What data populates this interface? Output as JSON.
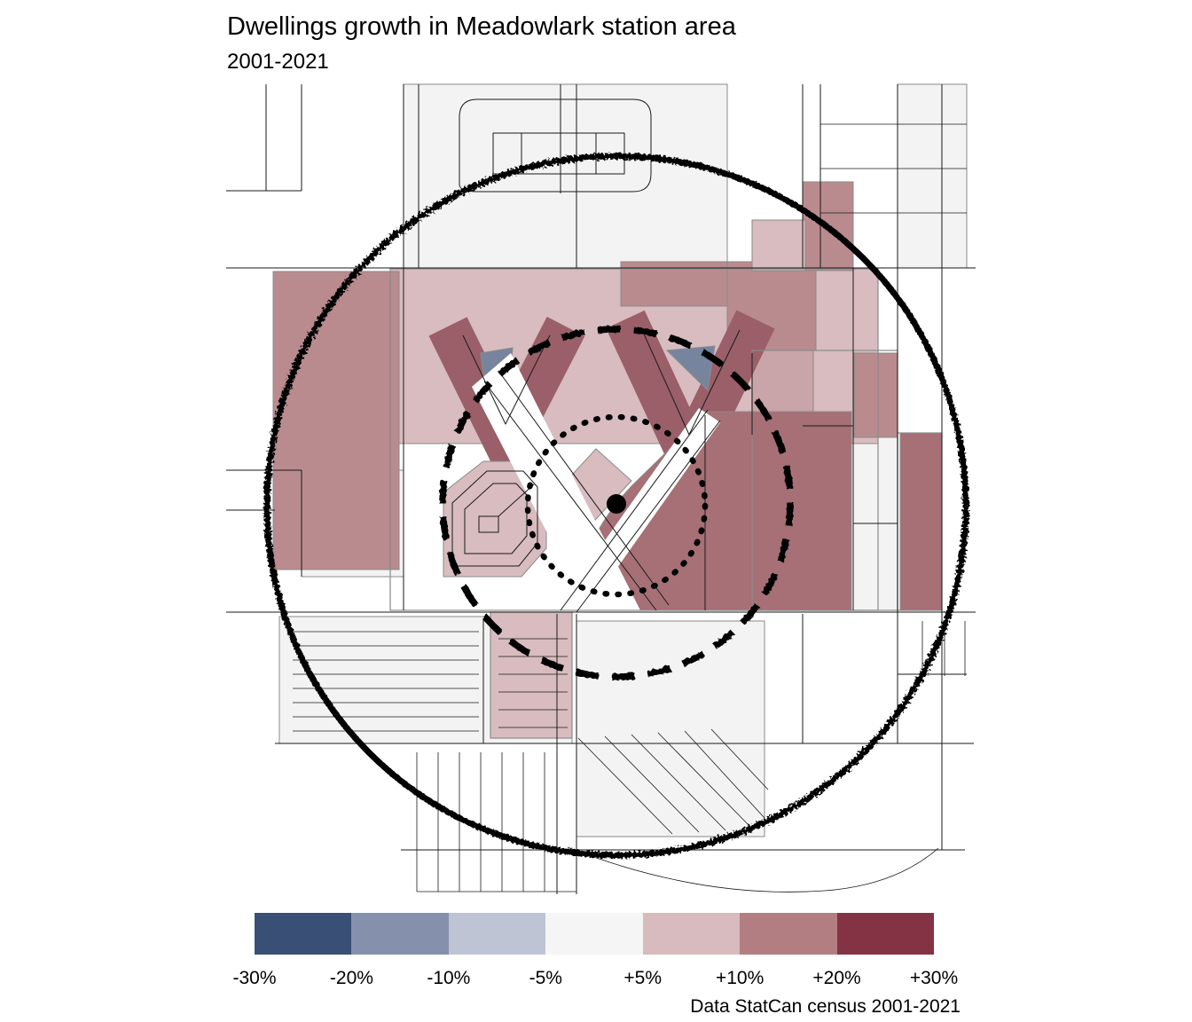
{
  "header": {
    "title": "Dwellings growth in Meadowlark station area",
    "subtitle": "2001-2021"
  },
  "footer": {
    "attribution": "Data StatCan census 2001-2021"
  },
  "legend": {
    "breaks": [
      "-30%",
      "-20%",
      "-10%",
      "-5%",
      "+5%",
      "+10%",
      "+20%",
      "+30%"
    ],
    "classes": [
      {
        "range": "-30% to -20%",
        "color": "#3a4f76"
      },
      {
        "range": "-20% to -10%",
        "color": "#8590ac"
      },
      {
        "range": "-10% to -5%",
        "color": "#bfc4d4"
      },
      {
        "range": "-5% to +5%",
        "color": "#f6f5f6"
      },
      {
        "range": "+5% to +10%",
        "color": "#d7bbbe"
      },
      {
        "range": "+10% to +20%",
        "color": "#b37e82"
      },
      {
        "range": "+20% to +30%",
        "color": "#843344"
      }
    ]
  },
  "map": {
    "station": {
      "name": "Meadowlark station",
      "marker_color": "#000000"
    },
    "rings": [
      {
        "name": "outer-buffer",
        "style": "solid"
      },
      {
        "name": "middle-buffer",
        "style": "dashed"
      },
      {
        "name": "inner-buffer",
        "style": "dotted"
      }
    ],
    "palette": {
      "base": "#f4f3f4",
      "street": "#1a1a1a",
      "tract_border": "#8a8a8a",
      "pink": "#d8bcbf",
      "pink_med": "#c9a4a8",
      "rose": "#b98b8f",
      "rose_med": "#a67076",
      "maroon_band": "#9a5f68",
      "blue": "#76849e"
    }
  },
  "chart_data": {
    "type": "choropleth-map",
    "title": "Dwellings growth in Meadowlark station area",
    "subtitle": "2001-2021",
    "legend_breaks_pct": [
      -30,
      -20,
      -10,
      -5,
      5,
      10,
      20,
      30
    ],
    "legend_colors": [
      "#3a4f76",
      "#8590ac",
      "#bfc4d4",
      "#f6f5f6",
      "#d7bbbe",
      "#b37e82",
      "#843344"
    ],
    "annotations": [
      "station point",
      "three concentric buffer rings (solid, dashed, dotted)"
    ],
    "source": "Data StatCan census 2001-2021"
  }
}
